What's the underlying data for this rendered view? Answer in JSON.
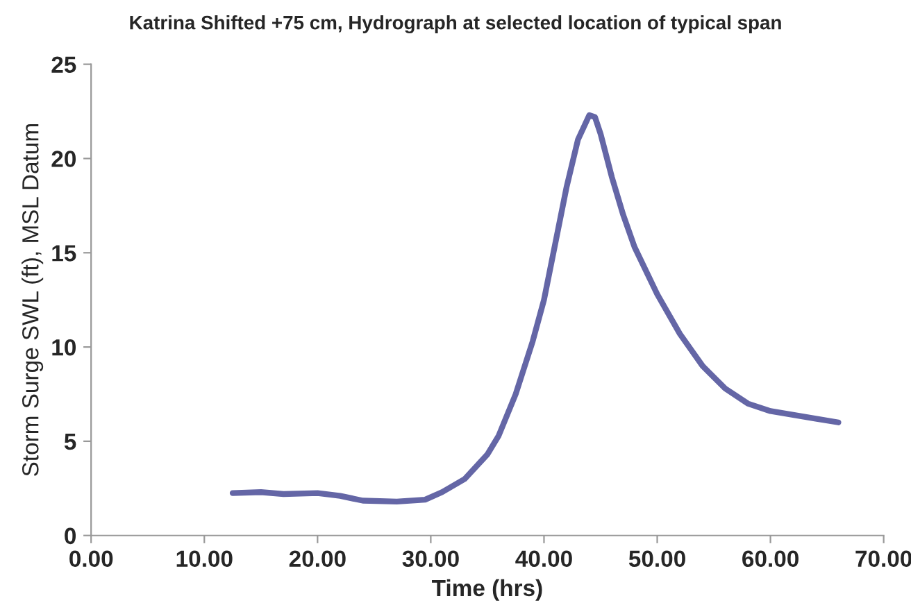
{
  "chart_data": {
    "type": "line",
    "title": "Katrina Shifted +75 cm, Hydrograph at selected location of typical span",
    "xlabel": "Time (hrs)",
    "ylabel": "Storm Surge SWL (ft), MSL Datum",
    "series": [
      {
        "color": "#6466a6",
        "x": [
          12.5,
          15,
          17,
          20,
          22,
          24,
          27,
          29.5,
          31,
          33,
          35,
          36,
          37.5,
          39,
          40,
          41,
          42,
          43,
          44,
          44.5,
          45,
          46,
          47,
          48,
          50,
          52,
          54,
          56,
          58,
          60,
          62,
          64,
          66
        ],
        "values": [
          2.25,
          2.3,
          2.2,
          2.25,
          2.1,
          1.85,
          1.8,
          1.9,
          2.3,
          3.0,
          4.3,
          5.3,
          7.5,
          10.3,
          12.5,
          15.5,
          18.5,
          21,
          22.3,
          22.2,
          21.3,
          19,
          17,
          15.3,
          12.8,
          10.7,
          9,
          7.8,
          7,
          6.6,
          6.4,
          6.2,
          6.0
        ]
      }
    ],
    "xlim": [
      0,
      70
    ],
    "xticks": [
      {
        "value": 0,
        "label": "0.00"
      },
      {
        "value": 10,
        "label": "10.00"
      },
      {
        "value": 20,
        "label": "20.00"
      },
      {
        "value": 30,
        "label": "30.00"
      },
      {
        "value": 40,
        "label": "40.00"
      },
      {
        "value": 50,
        "label": "50.00"
      },
      {
        "value": 60,
        "label": "60.00"
      },
      {
        "value": 70,
        "label": "70.00"
      }
    ],
    "ylim": [
      0,
      25
    ],
    "yticks": [
      0,
      5,
      10,
      15,
      20,
      25
    ],
    "grid": false,
    "legend": false,
    "marker": "none",
    "line_style": "solid"
  }
}
